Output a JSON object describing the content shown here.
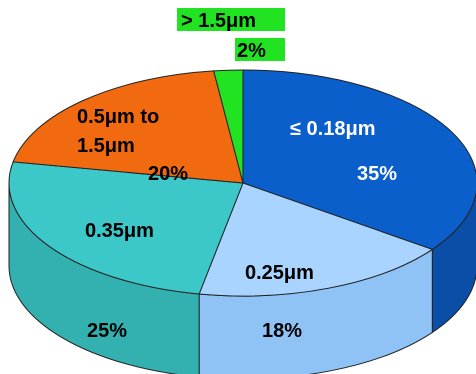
{
  "chart_data": {
    "type": "pie",
    "style": "3d",
    "slices": [
      {
        "name_lines": [
          "≤ 0.18μm"
        ],
        "value": 35,
        "value_label": "35%",
        "color": "#0a5fcb",
        "side_color": "#0b4ea8",
        "label_color": "#ffffff"
      },
      {
        "name_lines": [
          "0.25μm"
        ],
        "value": 18,
        "value_label": "18%",
        "color": "#a8d4ff",
        "side_color": "#8fc3f5",
        "label_color": "#000000"
      },
      {
        "name_lines": [
          "0.35μm"
        ],
        "value": 25,
        "value_label": "25%",
        "color": "#3cc8c8",
        "side_color": "#33b0b0",
        "label_color": "#000000"
      },
      {
        "name_lines": [
          "0.5μm to",
          "1.5μm"
        ],
        "value": 20,
        "value_label": "20%",
        "color": "#f26a10",
        "side_color": "#d45a0a",
        "label_color": "#000000"
      },
      {
        "name_lines": [
          ">  1.5μm"
        ],
        "value": 2,
        "value_label": "2%",
        "color": "#22e322",
        "side_color": "#1cc41c",
        "label_color": "#000000",
        "label_bg": "#22e322"
      }
    ]
  }
}
